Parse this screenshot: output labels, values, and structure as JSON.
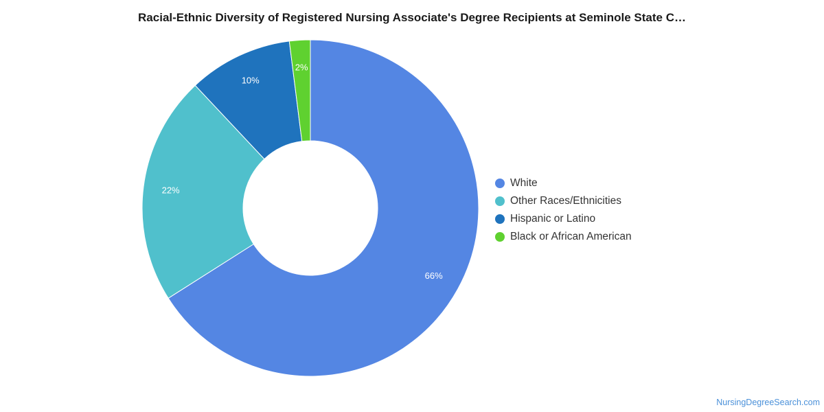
{
  "chart_data": {
    "type": "pie",
    "title": "Racial-Ethnic Diversity of Registered Nursing Associate's Degree Recipients at Seminole State C…",
    "donut": true,
    "categories": [
      "White",
      "Other Races/Ethnicities",
      "Hispanic or Latino",
      "Black or African American"
    ],
    "values": [
      66,
      22,
      10,
      2
    ],
    "labels": [
      "66%",
      "22%",
      "10%",
      "2%"
    ],
    "colors": [
      "#5486e3",
      "#50c0cc",
      "#1f73bd",
      "#5fd130"
    ],
    "legend_position": "right"
  },
  "watermark": "NursingDegreeSearch.com"
}
